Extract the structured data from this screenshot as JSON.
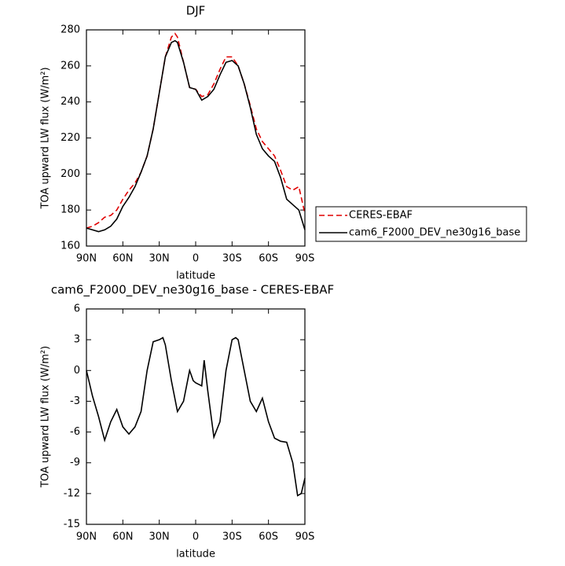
{
  "chart_data": [
    {
      "type": "line",
      "title": "DJF",
      "xlabel": "latitude",
      "ylabel": "TOA upward LW flux (W/m²)",
      "x": [
        90,
        85,
        80,
        75,
        70,
        65,
        60,
        55,
        50,
        45,
        40,
        35,
        30,
        25,
        20,
        17,
        15,
        10,
        5,
        0,
        -5,
        -10,
        -15,
        -20,
        -25,
        -30,
        -35,
        -40,
        -45,
        -50,
        -55,
        -60,
        -65,
        -70,
        -75,
        -80,
        -85,
        -90
      ],
      "series": [
        {
          "name": "CERES-EBAF",
          "color": "#e00000",
          "linestyle": "dashed",
          "values": [
            170,
            171,
            173,
            176,
            177,
            180,
            186,
            191,
            195,
            201,
            210,
            225,
            245,
            265,
            276,
            278,
            276,
            262,
            248,
            247,
            243,
            244,
            250,
            258,
            265,
            265,
            260,
            250,
            238,
            225,
            218,
            214,
            210,
            202,
            193,
            191,
            193,
            178
          ]
        },
        {
          "name": "cam6_F2000_DEV_ne30g16_base",
          "color": "#000000",
          "linestyle": "solid",
          "values": [
            170,
            169,
            168,
            169,
            171,
            175,
            182,
            187,
            193,
            201,
            210,
            225,
            245,
            265,
            273,
            274,
            273,
            262,
            248,
            247,
            241,
            243,
            247,
            255,
            262,
            263,
            260,
            250,
            237,
            222,
            214,
            210,
            207,
            198,
            186,
            183,
            180,
            169
          ]
        }
      ],
      "xlim": [
        90,
        -90
      ],
      "ylim": [
        160,
        280
      ],
      "xticks": [
        {
          "value": 90,
          "label": "90N"
        },
        {
          "value": 60,
          "label": "60N"
        },
        {
          "value": 30,
          "label": "30N"
        },
        0,
        {
          "value": -30,
          "label": "30S"
        },
        {
          "value": -60,
          "label": "60S"
        },
        {
          "value": -90,
          "label": "90S"
        }
      ],
      "yticks": [
        160,
        180,
        200,
        220,
        240,
        260,
        280
      ],
      "legend": "right"
    },
    {
      "type": "line",
      "title": "cam6_F2000_DEV_ne30g16_base - CERES-EBAF",
      "xlabel": "latitude",
      "ylabel": "TOA upward LW flux (W/m²)",
      "x": [
        90,
        85,
        80,
        75,
        70,
        65,
        60,
        55,
        50,
        45,
        40,
        35,
        30,
        27,
        25,
        20,
        15,
        10,
        5,
        2,
        0,
        -5,
        -7,
        -10,
        -15,
        -20,
        -25,
        -30,
        -33,
        -35,
        -40,
        -45,
        -50,
        -55,
        -60,
        -65,
        -70,
        -75,
        -80,
        -84,
        -87,
        -90
      ],
      "series": [
        {
          "color": "#000000",
          "linestyle": "solid",
          "values": [
            0,
            -2.5,
            -4.5,
            -6.8,
            -5,
            -3.8,
            -5.5,
            -6.2,
            -5.5,
            -4,
            0,
            2.8,
            3,
            3.2,
            2.5,
            -1,
            -4,
            -3,
            0,
            -1,
            -1.2,
            -1.5,
            1,
            -2,
            -6.5,
            -5,
            0,
            3,
            3.2,
            3,
            0,
            -3,
            -4,
            -2.7,
            -5,
            -6.6,
            -6.9,
            -7,
            -9,
            -12.2,
            -12,
            -10.5
          ]
        }
      ],
      "xlim": [
        90,
        -90
      ],
      "ylim": [
        -15,
        6
      ],
      "xticks": [
        {
          "value": 90,
          "label": "90N"
        },
        {
          "value": 60,
          "label": "60N"
        },
        {
          "value": 30,
          "label": "30N"
        },
        0,
        {
          "value": -30,
          "label": "30S"
        },
        {
          "value": -60,
          "label": "60S"
        },
        {
          "value": -90,
          "label": "90S"
        }
      ],
      "yticks": [
        -15,
        -12,
        -9,
        -6,
        -3,
        0,
        3,
        6
      ]
    }
  ]
}
